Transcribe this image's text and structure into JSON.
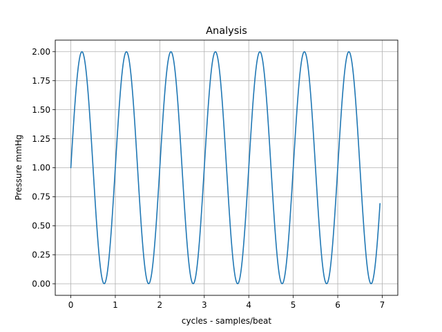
{
  "chart_data": {
    "type": "line",
    "title": "Analysis",
    "xlabel": "cycles - samples/beat",
    "ylabel": "Pressure mmHg",
    "xlim": [
      -0.35,
      7.35
    ],
    "ylim": [
      -0.1,
      2.1
    ],
    "xticks": [
      0,
      1,
      2,
      3,
      4,
      5,
      6,
      7
    ],
    "xtick_labels": [
      "0",
      "1",
      "2",
      "3",
      "4",
      "5",
      "6",
      "7"
    ],
    "yticks": [
      0,
      0.25,
      0.5,
      0.75,
      1.0,
      1.25,
      1.5,
      1.75,
      2.0
    ],
    "ytick_labels": [
      "0.00",
      "0.25",
      "0.50",
      "0.75",
      "1.00",
      "1.25",
      "1.50",
      "1.75",
      "2.00"
    ],
    "grid": true,
    "series": [
      {
        "function": "1 + sin(2*pi*x)",
        "x_start": 0,
        "x_end": 6.95,
        "samples": 700,
        "color": "#1f77b4"
      }
    ],
    "colors": {
      "line": "#1f77b4",
      "grid": "#b0b0b0",
      "axes": "#000000"
    }
  }
}
